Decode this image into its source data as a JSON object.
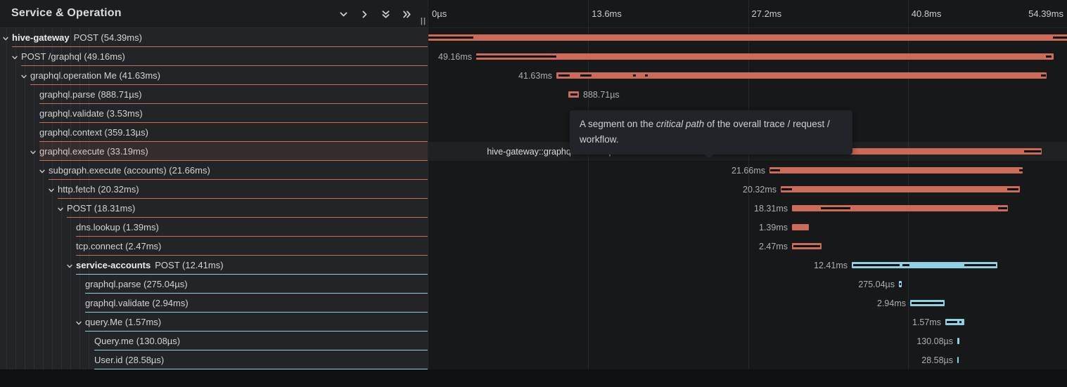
{
  "header": {
    "title": "Service & Operation",
    "resize_handle": "||",
    "icons": [
      "collapse-one-icon",
      "expand-one-icon",
      "collapse-all-icon",
      "expand-all-icon"
    ]
  },
  "timeline_axis": {
    "ticks": [
      {
        "label": "0µs",
        "pos": 0.0
      },
      {
        "label": "13.6ms",
        "pos": 0.25
      },
      {
        "label": "27.2ms",
        "pos": 0.5
      },
      {
        "label": "40.8ms",
        "pos": 0.75
      },
      {
        "label": "54.39ms",
        "pos": 1.0
      }
    ],
    "gridlines": [
      0.25,
      0.5,
      0.75
    ]
  },
  "tooltip": {
    "part1": "A segment on the ",
    "italic": "critical path",
    "part2": " of the overall trace / request / workflow."
  },
  "colors": {
    "orange_bar": "#cc6b57",
    "blue_bar": "#8fd1e2",
    "orange_line": "#c2705a",
    "blue_line": "#8fcfe0",
    "critical_black": "#0c0e10"
  },
  "rows": [
    {
      "service": "hive-gateway",
      "name": "POST",
      "duration": "54.39ms",
      "depth": 0,
      "chevron": true,
      "color": "orange",
      "hovered": false,
      "bar": [
        0,
        909
      ],
      "black": [
        [
          0,
          64
        ],
        [
          888,
          909
        ]
      ],
      "bar_label": "",
      "label_side": "none"
    },
    {
      "service": null,
      "name": "POST /graphql",
      "duration": "49.16ms",
      "depth": 1,
      "chevron": true,
      "color": "orange",
      "hovered": false,
      "bar": [
        68,
        889
      ],
      "black": [
        [
          68,
          182
        ],
        [
          878,
          886
        ]
      ],
      "bar_label": "49.16ms",
      "label_side": "left"
    },
    {
      "service": null,
      "name": "graphql.operation Me",
      "duration": "41.63ms",
      "depth": 2,
      "chevron": true,
      "color": "orange",
      "hovered": false,
      "bar": [
        182,
        879
      ],
      "black": [
        [
          185,
          201
        ],
        [
          216,
          232
        ],
        [
          291,
          295
        ],
        [
          308,
          312
        ],
        [
          871,
          878
        ]
      ],
      "bar_label": "41.63ms",
      "label_side": "left"
    },
    {
      "service": null,
      "name": "graphql.parse",
      "duration": "888.71µs",
      "depth": 3,
      "chevron": false,
      "color": "orange",
      "hovered": false,
      "bar": [
        199,
        214
      ],
      "black": [
        [
          202,
          212
        ]
      ],
      "bar_label": "888.71µs",
      "label_side": "right"
    },
    {
      "service": null,
      "name": "graphql.validate",
      "duration": "3.53ms",
      "depth": 3,
      "chevron": false,
      "color": "orange",
      "hovered": false,
      "bar": [
        233,
        292
      ],
      "black": [
        [
          235,
          290
        ]
      ],
      "bar_label": "3.53ms",
      "label_side": "right"
    },
    {
      "service": null,
      "name": "graphql.context",
      "duration": "359.13µs",
      "depth": 3,
      "chevron": false,
      "color": "orange",
      "hovered": false,
      "bar": [
        294,
        300
      ],
      "black": [],
      "bar_label": "359.13µs",
      "label_side": "right"
    },
    {
      "service": null,
      "name": "graphql.execute",
      "duration": "33.19ms",
      "depth": 3,
      "chevron": true,
      "color": "orange",
      "hovered": true,
      "bar": [
        317,
        872
      ],
      "black": [
        [
          317,
          482
        ],
        [
          847,
          871
        ]
      ],
      "bar_label": "hive-gateway::graphql.execute | 33.19ms",
      "label_side": "left"
    },
    {
      "service": null,
      "name": "subgraph.execute (accounts)",
      "duration": "21.66ms",
      "depth": 4,
      "chevron": true,
      "color": "orange",
      "hovered": false,
      "bar": [
        485,
        845
      ],
      "black": [
        [
          486,
          500
        ],
        [
          840,
          845
        ]
      ],
      "bar_label": "21.66ms",
      "label_side": "left"
    },
    {
      "service": null,
      "name": "http.fetch",
      "duration": "20.32ms",
      "depth": 5,
      "chevron": true,
      "color": "orange",
      "hovered": false,
      "bar": [
        501,
        841
      ],
      "black": [
        [
          502,
          517
        ],
        [
          823,
          839
        ]
      ],
      "bar_label": "20.32ms",
      "label_side": "left"
    },
    {
      "service": null,
      "name": "POST",
      "duration": "18.31ms",
      "depth": 6,
      "chevron": true,
      "color": "orange",
      "hovered": false,
      "bar": [
        517,
        824
      ],
      "black": [
        [
          558,
          600
        ],
        [
          810,
          823
        ]
      ],
      "bar_label": "18.31ms",
      "label_side": "left"
    },
    {
      "service": null,
      "name": "dns.lookup",
      "duration": "1.39ms",
      "depth": 7,
      "chevron": false,
      "color": "orange",
      "hovered": false,
      "bar": [
        517,
        541
      ],
      "black": [],
      "bar_label": "1.39ms",
      "label_side": "left"
    },
    {
      "service": null,
      "name": "tcp.connect",
      "duration": "2.47ms",
      "depth": 7,
      "chevron": false,
      "color": "orange",
      "hovered": false,
      "bar": [
        517,
        559
      ],
      "black": [
        [
          519,
          557
        ]
      ],
      "bar_label": "2.47ms",
      "label_side": "left"
    },
    {
      "service": "service-accounts",
      "name": "POST",
      "duration": "12.41ms",
      "depth": 7,
      "chevron": true,
      "color": "blue",
      "hovered": false,
      "bar": [
        602,
        809
      ],
      "black": [
        [
          604,
          670
        ],
        [
          674,
          684
        ],
        [
          762,
          807
        ]
      ],
      "bar_label": "12.41ms",
      "label_side": "left"
    },
    {
      "service": null,
      "name": "graphql.parse",
      "duration": "275.04µs",
      "depth": 8,
      "chevron": false,
      "color": "blue",
      "hovered": false,
      "bar": [
        669,
        673
      ],
      "black": [
        [
          670,
          672
        ]
      ],
      "bar_label": "275.04µs",
      "label_side": "left"
    },
    {
      "service": null,
      "name": "graphql.validate",
      "duration": "2.94ms",
      "depth": 8,
      "chevron": false,
      "color": "blue",
      "hovered": false,
      "bar": [
        685,
        734
      ],
      "black": [
        [
          687,
          732
        ]
      ],
      "bar_label": "2.94ms",
      "label_side": "left"
    },
    {
      "service": null,
      "name": "query.Me",
      "duration": "1.57ms",
      "depth": 8,
      "chevron": true,
      "color": "blue",
      "hovered": false,
      "bar": [
        735,
        762
      ],
      "black": [
        [
          737,
          752
        ],
        [
          755,
          758
        ]
      ],
      "bar_label": "1.57ms",
      "label_side": "left"
    },
    {
      "service": null,
      "name": "Query.me",
      "duration": "130.08µs",
      "depth": 9,
      "chevron": false,
      "color": "blue",
      "hovered": false,
      "bar": [
        752,
        755
      ],
      "black": [],
      "bar_label": "130.08µs",
      "label_side": "left"
    },
    {
      "service": null,
      "name": "User.id",
      "duration": "28.58µs",
      "depth": 9,
      "chevron": false,
      "color": "blue",
      "hovered": false,
      "bar": [
        752,
        754
      ],
      "black": [],
      "bar_label": "28.58µs",
      "label_side": "left"
    }
  ]
}
